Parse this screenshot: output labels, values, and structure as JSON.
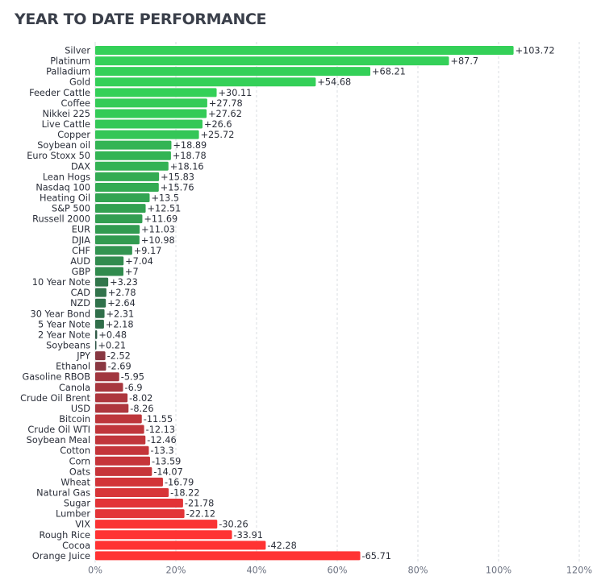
{
  "title": "YEAR TO DATE PERFORMANCE",
  "chart_data": {
    "type": "bar",
    "orientation": "horizontal",
    "title": "YEAR TO DATE PERFORMANCE",
    "xlabel": "",
    "ylabel": "",
    "xlim": [
      0,
      120
    ],
    "x_ticks": [
      "0%",
      "20%",
      "40%",
      "60%",
      "80%",
      "100%",
      "120%"
    ],
    "grid": "vertical dashed",
    "categories": [
      "Silver",
      "Platinum",
      "Palladium",
      "Gold",
      "Feeder Cattle",
      "Coffee",
      "Nikkei 225",
      "Live Cattle",
      "Copper",
      "Soybean oil",
      "Euro Stoxx 50",
      "DAX",
      "Lean Hogs",
      "Nasdaq 100",
      "Heating Oil",
      "S&P 500",
      "Russell 2000",
      "EUR",
      "DJIA",
      "CHF",
      "AUD",
      "GBP",
      "10 Year Note",
      "CAD",
      "NZD",
      "30 Year Bond",
      "5 Year Note",
      "2 Year Note",
      "Soybeans",
      "JPY",
      "Ethanol",
      "Gasoline RBOB",
      "Canola",
      "Crude Oil Brent",
      "USD",
      "Bitcoin",
      "Crude Oil WTI",
      "Soybean Meal",
      "Cotton",
      "Corn",
      "Oats",
      "Wheat",
      "Natural Gas",
      "Sugar",
      "Lumber",
      "VIX",
      "Rough Rice",
      "Cocoa",
      "Orange Juice"
    ],
    "values": [
      103.72,
      87.7,
      68.21,
      54.68,
      30.11,
      27.78,
      27.62,
      26.6,
      25.72,
      18.89,
      18.78,
      18.16,
      15.83,
      15.76,
      13.5,
      12.51,
      11.69,
      11.03,
      10.98,
      9.17,
      7.04,
      7,
      3.23,
      2.78,
      2.64,
      2.31,
      2.18,
      0.48,
      0.21,
      -2.52,
      -2.69,
      -5.95,
      -6.9,
      -8.02,
      -8.26,
      -11.55,
      -12.13,
      -12.46,
      -13.3,
      -13.59,
      -14.07,
      -16.79,
      -18.22,
      -21.78,
      -22.12,
      -30.26,
      -33.91,
      -42.28,
      -65.71
    ],
    "value_labels": [
      "+103.72",
      "+87.7",
      "+68.21",
      "+54.68",
      "+30.11",
      "+27.78",
      "+27.62",
      "+26.6",
      "+25.72",
      "+18.89",
      "+18.78",
      "+18.16",
      "+15.83",
      "+15.76",
      "+13.5",
      "+12.51",
      "+11.69",
      "+11.03",
      "+10.98",
      "+9.17",
      "+7.04",
      "+7",
      "+3.23",
      "+2.78",
      "+2.64",
      "+2.31",
      "+2.18",
      "+0.48",
      "+0.21",
      "-2.52",
      "-2.69",
      "-5.95",
      "-6.9",
      "-8.02",
      "-8.26",
      "-11.55",
      "-12.13",
      "-12.46",
      "-13.3",
      "-13.59",
      "-14.07",
      "-16.79",
      "-18.22",
      "-21.78",
      "-22.12",
      "-30.26",
      "-33.91",
      "-42.28",
      "-65.71"
    ],
    "bar_length": "absolute value",
    "colors": {
      "positive_strong": "#34d058",
      "positive_weak": "#2f4a45",
      "negative_weak": "#5a3a48",
      "negative_strong": "#ff3333",
      "grid": "#d9dce2"
    }
  }
}
